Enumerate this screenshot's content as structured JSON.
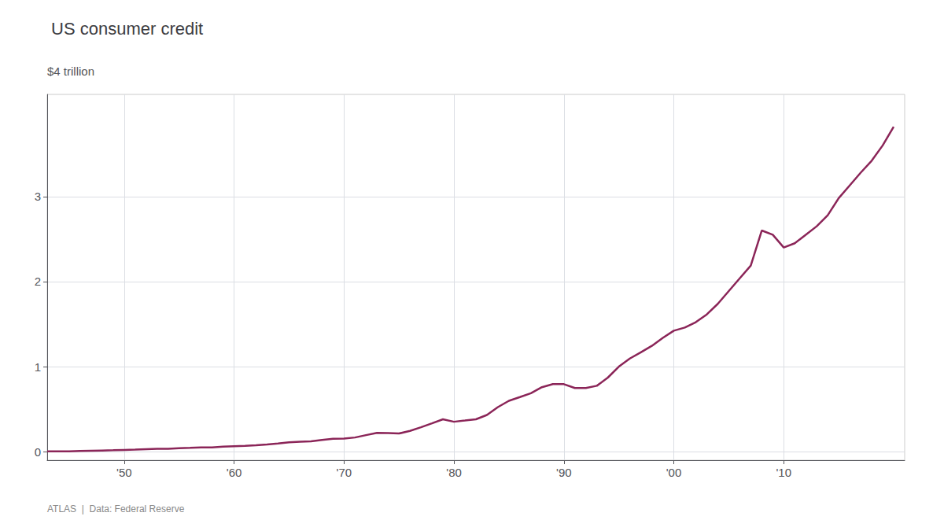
{
  "chart_data": {
    "type": "line",
    "title": "US consumer credit",
    "ylabel": "$4 trillion",
    "annotations": [
      "ATLAS",
      "|",
      "Data: Federal Reserve"
    ],
    "x": [
      1943,
      1944,
      1945,
      1946,
      1947,
      1948,
      1949,
      1950,
      1951,
      1952,
      1953,
      1954,
      1955,
      1956,
      1957,
      1958,
      1959,
      1960,
      1961,
      1962,
      1963,
      1964,
      1965,
      1966,
      1967,
      1968,
      1969,
      1970,
      1971,
      1972,
      1973,
      1974,
      1975,
      1976,
      1977,
      1978,
      1979,
      1980,
      1981,
      1982,
      1983,
      1984,
      1985,
      1986,
      1987,
      1988,
      1989,
      1990,
      1991,
      1992,
      1993,
      1994,
      1995,
      1996,
      1997,
      1998,
      1999,
      2000,
      2001,
      2002,
      2003,
      2004,
      2005,
      2006,
      2007,
      2008,
      2009,
      2010,
      2011,
      2012,
      2013,
      2014,
      2015,
      2016,
      2017,
      2018,
      2019,
      2020
    ],
    "values": [
      0.005,
      0.004,
      0.005,
      0.008,
      0.011,
      0.014,
      0.017,
      0.021,
      0.024,
      0.029,
      0.033,
      0.033,
      0.042,
      0.046,
      0.051,
      0.051,
      0.06,
      0.065,
      0.068,
      0.076,
      0.086,
      0.097,
      0.111,
      0.117,
      0.122,
      0.138,
      0.152,
      0.155,
      0.167,
      0.195,
      0.222,
      0.22,
      0.214,
      0.245,
      0.287,
      0.333,
      0.381,
      0.352,
      0.366,
      0.381,
      0.432,
      0.524,
      0.598,
      0.642,
      0.687,
      0.758,
      0.794,
      0.794,
      0.748,
      0.748,
      0.775,
      0.871,
      1.0,
      1.095,
      1.168,
      1.244,
      1.338,
      1.422,
      1.459,
      1.522,
      1.614,
      1.738,
      1.888,
      2.038,
      2.188,
      2.6,
      2.55,
      2.4,
      2.45,
      2.55,
      2.65,
      2.78,
      2.98,
      3.13,
      3.28,
      3.42,
      3.6,
      3.82
    ],
    "color": "#8B2558",
    "xlim": [
      1943,
      2021
    ],
    "xticks": [
      {
        "value": 1950,
        "label": "'50"
      },
      {
        "value": 1960,
        "label": "'60"
      },
      {
        "value": 1970,
        "label": "'70"
      },
      {
        "value": 1980,
        "label": "'80"
      },
      {
        "value": 1990,
        "label": "'90"
      },
      {
        "value": 2000,
        "label": "'00"
      },
      {
        "value": 2010,
        "label": "'10"
      }
    ],
    "ylim": [
      -0.1,
      4.2
    ],
    "yticks": [
      0,
      1,
      2,
      3
    ],
    "grid": true
  }
}
